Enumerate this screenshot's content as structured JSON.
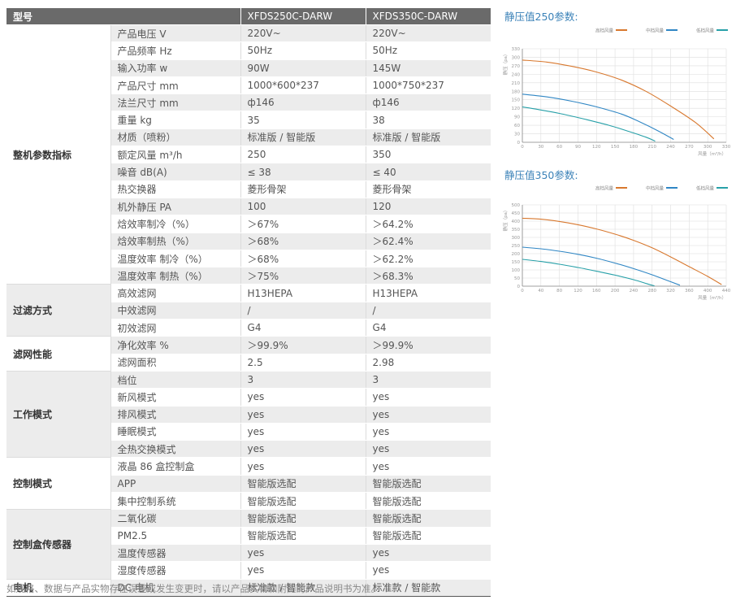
{
  "table": {
    "header": {
      "label": "型号",
      "models": [
        "XFDS250C-DARW",
        "XFDS350C-DARW"
      ]
    },
    "groups": [
      {
        "name": "整机参数指标",
        "rows": [
          {
            "param": "产品电压 V",
            "values": [
              "220V~",
              "220V~"
            ]
          },
          {
            "param": "产品频率 Hz",
            "values": [
              "50Hz",
              "50Hz"
            ]
          },
          {
            "param": "输入功率 w",
            "values": [
              "90W",
              "145W"
            ]
          },
          {
            "param": "产品尺寸 mm",
            "values": [
              "1000*600*237",
              "1000*750*237"
            ]
          },
          {
            "param": "法兰尺寸 mm",
            "values": [
              "ф146",
              "ф146"
            ]
          },
          {
            "param": "重量 kg",
            "values": [
              "35",
              "38"
            ]
          },
          {
            "param": "材质（喷粉）",
            "values": [
              "标准版 / 智能版",
              "标准版 / 智能版"
            ]
          },
          {
            "param": "额定风量 m³/h",
            "values": [
              "250",
              "350"
            ]
          },
          {
            "param": "噪音 dB(A)",
            "values": [
              "≤ 38",
              "≤ 40"
            ]
          },
          {
            "param": "热交换器",
            "values": [
              "菱形骨架",
              "菱形骨架"
            ]
          },
          {
            "param": "机外静压 PA",
            "values": [
              "100",
              "120"
            ]
          },
          {
            "param": "焓效率制冷（%）",
            "values": [
              "＞67%",
              "＞64.2%"
            ]
          },
          {
            "param": "焓效率制热（%）",
            "values": [
              "＞68%",
              "＞62.4%"
            ]
          },
          {
            "param": "温度效率 制冷（%）",
            "values": [
              "＞68%",
              "＞62.2%"
            ]
          },
          {
            "param": "温度效率 制热（%）",
            "values": [
              "＞75%",
              "＞68.3%"
            ]
          }
        ]
      },
      {
        "name": "过滤方式",
        "rows": [
          {
            "param": "高效滤网",
            "values": [
              "H13HEPA",
              "H13HEPA"
            ]
          },
          {
            "param": "中效滤网",
            "values": [
              "/",
              "/"
            ]
          },
          {
            "param": "初效滤网",
            "values": [
              "G4",
              "G4"
            ]
          }
        ]
      },
      {
        "name": "滤网性能",
        "rows": [
          {
            "param": "净化效率 %",
            "values": [
              "＞99.9%",
              "＞99.9%"
            ]
          },
          {
            "param": "滤网面积",
            "values": [
              "2.5",
              "2.98"
            ]
          }
        ]
      },
      {
        "name": "工作模式",
        "rows": [
          {
            "param": "档位",
            "values": [
              "3",
              "3"
            ]
          },
          {
            "param": "新风模式",
            "values": [
              "yes",
              "yes"
            ]
          },
          {
            "param": "排风模式",
            "values": [
              "yes",
              "yes"
            ]
          },
          {
            "param": "睡眠模式",
            "values": [
              "yes",
              "yes"
            ]
          },
          {
            "param": "全热交换模式",
            "values": [
              "yes",
              "yes"
            ]
          }
        ]
      },
      {
        "name": "控制模式",
        "rows": [
          {
            "param": "液晶 86 盒控制盒",
            "values": [
              "yes",
              "yes"
            ]
          },
          {
            "param": "APP",
            "values": [
              "智能版选配",
              "智能版选配"
            ]
          },
          {
            "param": "集中控制系统",
            "values": [
              "智能版选配",
              "智能版选配"
            ]
          }
        ]
      },
      {
        "name": "控制盒传感器",
        "rows": [
          {
            "param": "二氧化碳",
            "values": [
              "智能版选配",
              "智能版选配"
            ]
          },
          {
            "param": "PM2.5",
            "values": [
              "智能版选配",
              "智能版选配"
            ]
          },
          {
            "param": "温度传感器",
            "values": [
              "yes",
              "yes"
            ]
          },
          {
            "param": "湿度传感器",
            "values": [
              "yes",
              "yes"
            ]
          }
        ]
      },
      {
        "name": "电机",
        "rows": [
          {
            "param": "DC 电机",
            "values": [
              "标准款 / 智能款",
              "标准款 / 智能款"
            ]
          }
        ]
      }
    ]
  },
  "footnote": "如规格、数据与产品实物存在误差或发生变更时，请以产品实物和附随的产品说明书为准。",
  "colors": {
    "high": "#d8782e",
    "mid": "#2f86c4",
    "low": "#27a0a8",
    "title": "#3b82b8",
    "header_bg": "#6a6a6a",
    "row_shade": "#ececec"
  },
  "chart_data": [
    {
      "type": "line",
      "title": "静压值250参数:",
      "ylabel": "静压（pa）",
      "xlabel": "风量（m³/h）",
      "xlim": [
        0,
        330
      ],
      "ylim": [
        0,
        330
      ],
      "xticks": [
        "0",
        "30",
        "60",
        "90",
        "120",
        "150",
        "180",
        "210",
        "240",
        "270",
        "300",
        "330"
      ],
      "yticks": [
        "0",
        "30",
        "60",
        "90",
        "120",
        "150",
        "180",
        "210",
        "240",
        "270",
        "300",
        "330"
      ],
      "legend_position": "top-right",
      "series": [
        {
          "name": "高档风量",
          "color": "#d8782e",
          "points": [
            [
              0,
              290
            ],
            [
              40,
              283
            ],
            [
              80,
              268
            ],
            [
              120,
              248
            ],
            [
              160,
              220
            ],
            [
              200,
              180
            ],
            [
              240,
              128
            ],
            [
              280,
              70
            ],
            [
              310,
              12
            ]
          ]
        },
        {
          "name": "中档风量",
          "color": "#2f86c4",
          "points": [
            [
              0,
              170
            ],
            [
              40,
              160
            ],
            [
              80,
              145
            ],
            [
              120,
              125
            ],
            [
              160,
              100
            ],
            [
              190,
              72
            ],
            [
              220,
              40
            ],
            [
              245,
              10
            ]
          ]
        },
        {
          "name": "低档风量",
          "color": "#27a0a8",
          "points": [
            [
              0,
              125
            ],
            [
              30,
              114
            ],
            [
              60,
              102
            ],
            [
              100,
              82
            ],
            [
              140,
              60
            ],
            [
              170,
              40
            ],
            [
              200,
              18
            ],
            [
              215,
              4
            ]
          ]
        }
      ]
    },
    {
      "type": "line",
      "title": "静压值350参数:",
      "ylabel": "静压（pa）",
      "xlabel": "风量（m³/h）",
      "xlim": [
        0,
        440
      ],
      "ylim": [
        0,
        500
      ],
      "xticks": [
        "0",
        "40",
        "80",
        "120",
        "160",
        "200",
        "240",
        "280",
        "320",
        "360",
        "400",
        "440"
      ],
      "yticks": [
        "0",
        "50",
        "100",
        "150",
        "200",
        "250",
        "300",
        "350",
        "400",
        "450",
        "500"
      ],
      "legend_position": "top-right",
      "series": [
        {
          "name": "高档风量",
          "color": "#d8782e",
          "points": [
            [
              0,
              418
            ],
            [
              40,
              412
            ],
            [
              80,
              398
            ],
            [
              120,
              378
            ],
            [
              160,
              352
            ],
            [
              200,
              320
            ],
            [
              240,
              282
            ],
            [
              280,
              236
            ],
            [
              320,
              180
            ],
            [
              360,
              120
            ],
            [
              400,
              60
            ],
            [
              430,
              10
            ]
          ]
        },
        {
          "name": "中档风量",
          "color": "#2f86c4",
          "points": [
            [
              0,
              240
            ],
            [
              40,
              230
            ],
            [
              80,
              215
            ],
            [
              120,
              196
            ],
            [
              160,
              172
            ],
            [
              200,
              142
            ],
            [
              240,
              108
            ],
            [
              280,
              70
            ],
            [
              310,
              38
            ],
            [
              340,
              6
            ]
          ]
        },
        {
          "name": "低档风量",
          "color": "#27a0a8",
          "points": [
            [
              0,
              165
            ],
            [
              40,
              152
            ],
            [
              80,
              135
            ],
            [
              120,
              115
            ],
            [
              160,
              92
            ],
            [
              200,
              68
            ],
            [
              240,
              40
            ],
            [
              270,
              14
            ],
            [
              285,
              2
            ]
          ]
        }
      ]
    }
  ]
}
